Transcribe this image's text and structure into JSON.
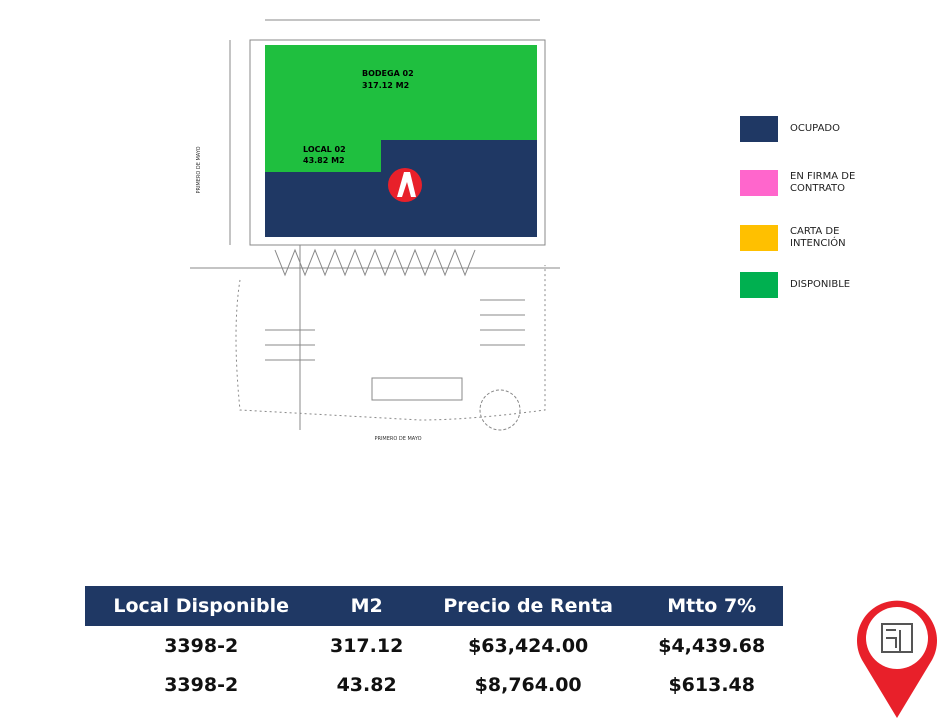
{
  "plan": {
    "areas": [
      {
        "name": "BODEGA 02",
        "size": "317.12 M2"
      },
      {
        "name": "LOCAL 02",
        "size": "43.82 M2"
      }
    ],
    "street_labels": [
      "PRIMERO DE MAYO",
      "PRIMERO DE MAYO"
    ]
  },
  "legend": [
    {
      "label": "OCUPADO",
      "color": "#1f3864"
    },
    {
      "label": "EN FIRMA DE CONTRATO",
      "color": "#ff66cc"
    },
    {
      "label": "CARTA DE INTENCIÓN",
      "color": "#ffc000"
    },
    {
      "label": "DISPONIBLE",
      "color": "#00b050"
    }
  ],
  "table": {
    "header": [
      "Local Disponible",
      "M2",
      "Precio de Renta",
      "Mtto 7%"
    ],
    "rows": [
      [
        "3398-2",
        "317.12",
        "$63,424.00",
        "$4,439.68"
      ],
      [
        "3398-2",
        "43.82",
        "$8,764.00",
        "$613.48"
      ]
    ]
  }
}
